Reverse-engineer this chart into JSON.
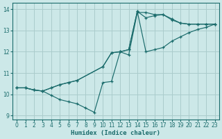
{
  "xlabel": "Humidex (Indice chaleur)",
  "bg_color": "#cce8e8",
  "grid_color": "#aacccc",
  "line_color": "#1a6b6b",
  "xlim": [
    -0.5,
    23.5
  ],
  "ylim": [
    8.8,
    14.3
  ],
  "xticks": [
    0,
    1,
    2,
    3,
    4,
    5,
    6,
    7,
    8,
    9,
    10,
    11,
    12,
    13,
    14,
    15,
    16,
    17,
    18,
    19,
    20,
    21,
    22,
    23
  ],
  "yticks": [
    9,
    10,
    11,
    12,
    13,
    14
  ],
  "line1_x": [
    0,
    1,
    2,
    3,
    4,
    5,
    6,
    7,
    8,
    9,
    10,
    11,
    12,
    13,
    14,
    15,
    16,
    17,
    18,
    19,
    20,
    21,
    22,
    23
  ],
  "line1_y": [
    10.3,
    10.3,
    10.2,
    10.15,
    9.95,
    9.75,
    9.65,
    9.55,
    9.35,
    9.15,
    10.55,
    10.6,
    12.0,
    11.85,
    13.85,
    13.85,
    13.75,
    13.75,
    13.5,
    13.35,
    13.3,
    13.3,
    13.3,
    13.3
  ],
  "line2_x": [
    0,
    1,
    2,
    3,
    4,
    5,
    6,
    7,
    10,
    11,
    12,
    13,
    14,
    15,
    16,
    17,
    18,
    19,
    20,
    21,
    22,
    23
  ],
  "line2_y": [
    10.3,
    10.3,
    10.2,
    10.15,
    10.3,
    10.45,
    10.55,
    10.65,
    11.3,
    11.95,
    12.0,
    12.1,
    13.9,
    12.0,
    12.1,
    12.2,
    12.5,
    12.7,
    12.9,
    13.05,
    13.15,
    13.3
  ],
  "line3_x": [
    0,
    1,
    2,
    3,
    4,
    5,
    6,
    7,
    10,
    11,
    12,
    13,
    14,
    15,
    16,
    17,
    18,
    19,
    20,
    21,
    22,
    23
  ],
  "line3_y": [
    10.3,
    10.3,
    10.2,
    10.15,
    10.3,
    10.45,
    10.55,
    10.65,
    11.3,
    11.95,
    12.0,
    12.1,
    13.9,
    13.6,
    13.7,
    13.75,
    13.55,
    13.35,
    13.3,
    13.3,
    13.3,
    13.3
  ]
}
